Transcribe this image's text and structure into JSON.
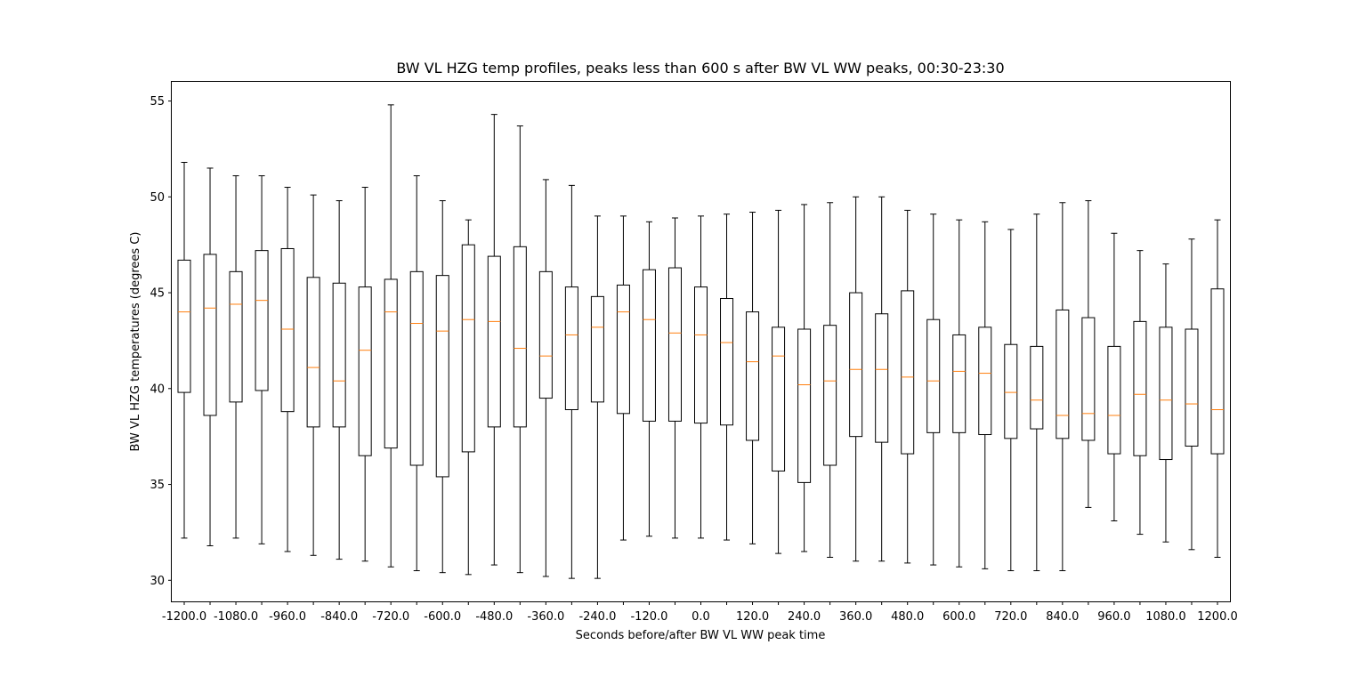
{
  "chart_data": {
    "type": "boxplot",
    "title": "BW VL HZG temp profiles, peaks less than 600 s after BW VL WW peaks, 00:30-23:30",
    "xlabel": "Seconds before/after BW VL WW peak time",
    "ylabel": "BW VL HZG temperatures (degrees C)",
    "ylim": [
      28.9,
      56.0
    ],
    "yticks": [
      30,
      35,
      40,
      45,
      50,
      55
    ],
    "xtick_labels": [
      "-1200.0",
      "-1080.0",
      "-960.0",
      "-840.0",
      "-720.0",
      "-600.0",
      "-480.0",
      "-360.0",
      "-240.0",
      "-120.0",
      "0.0",
      "120.0",
      "240.0",
      "360.0",
      "480.0",
      "600.0",
      "720.0",
      "840.0",
      "960.0",
      "1080.0",
      "1200.0"
    ],
    "grid": false,
    "median_color": "#ff7f0e",
    "box_color": "#000000",
    "boxes": [
      {
        "x": -1200,
        "whislo": 32.2,
        "q1": 39.8,
        "med": 44.0,
        "q3": 46.7,
        "whishi": 51.8
      },
      {
        "x": -1140,
        "whislo": 31.8,
        "q1": 38.6,
        "med": 44.2,
        "q3": 47.0,
        "whishi": 51.5
      },
      {
        "x": -1080,
        "whislo": 32.2,
        "q1": 39.3,
        "med": 44.4,
        "q3": 46.1,
        "whishi": 51.1
      },
      {
        "x": -1020,
        "whislo": 31.9,
        "q1": 39.9,
        "med": 44.6,
        "q3": 47.2,
        "whishi": 51.1
      },
      {
        "x": -960,
        "whislo": 31.5,
        "q1": 38.8,
        "med": 43.1,
        "q3": 47.3,
        "whishi": 50.5
      },
      {
        "x": -900,
        "whislo": 31.3,
        "q1": 38.0,
        "med": 41.1,
        "q3": 45.8,
        "whishi": 50.1
      },
      {
        "x": -840,
        "whislo": 31.1,
        "q1": 38.0,
        "med": 40.4,
        "q3": 45.5,
        "whishi": 49.8
      },
      {
        "x": -780,
        "whislo": 31.0,
        "q1": 36.5,
        "med": 42.0,
        "q3": 45.3,
        "whishi": 50.5
      },
      {
        "x": -720,
        "whislo": 30.7,
        "q1": 36.9,
        "med": 44.0,
        "q3": 45.7,
        "whishi": 54.8
      },
      {
        "x": -660,
        "whislo": 30.5,
        "q1": 36.0,
        "med": 43.4,
        "q3": 46.1,
        "whishi": 51.1
      },
      {
        "x": -600,
        "whislo": 30.4,
        "q1": 35.4,
        "med": 43.0,
        "q3": 45.9,
        "whishi": 49.8
      },
      {
        "x": -540,
        "whislo": 30.3,
        "q1": 36.7,
        "med": 43.6,
        "q3": 47.5,
        "whishi": 48.8
      },
      {
        "x": -480,
        "whislo": 30.8,
        "q1": 38.0,
        "med": 43.5,
        "q3": 46.9,
        "whishi": 54.3
      },
      {
        "x": -420,
        "whislo": 30.4,
        "q1": 38.0,
        "med": 42.1,
        "q3": 47.4,
        "whishi": 53.7
      },
      {
        "x": -360,
        "whislo": 30.2,
        "q1": 39.5,
        "med": 41.7,
        "q3": 46.1,
        "whishi": 50.9
      },
      {
        "x": -300,
        "whislo": 30.1,
        "q1": 38.9,
        "med": 42.8,
        "q3": 45.3,
        "whishi": 50.6
      },
      {
        "x": -240,
        "whislo": 30.1,
        "q1": 39.3,
        "med": 43.2,
        "q3": 44.8,
        "whishi": 49.0
      },
      {
        "x": -180,
        "whislo": 32.1,
        "q1": 38.7,
        "med": 44.0,
        "q3": 45.4,
        "whishi": 49.0
      },
      {
        "x": -120,
        "whislo": 32.3,
        "q1": 38.3,
        "med": 43.6,
        "q3": 46.2,
        "whishi": 48.7
      },
      {
        "x": -60,
        "whislo": 32.2,
        "q1": 38.3,
        "med": 42.9,
        "q3": 46.3,
        "whishi": 48.9
      },
      {
        "x": 0,
        "whislo": 32.2,
        "q1": 38.2,
        "med": 42.8,
        "q3": 45.3,
        "whishi": 49.0
      },
      {
        "x": 60,
        "whislo": 32.1,
        "q1": 38.1,
        "med": 42.4,
        "q3": 44.7,
        "whishi": 49.1
      },
      {
        "x": 120,
        "whislo": 31.9,
        "q1": 37.3,
        "med": 41.4,
        "q3": 44.0,
        "whishi": 49.2
      },
      {
        "x": 180,
        "whislo": 31.4,
        "q1": 35.7,
        "med": 41.7,
        "q3": 43.2,
        "whishi": 49.3
      },
      {
        "x": 240,
        "whislo": 31.5,
        "q1": 35.1,
        "med": 40.2,
        "q3": 43.1,
        "whishi": 49.6
      },
      {
        "x": 300,
        "whislo": 31.2,
        "q1": 36.0,
        "med": 40.4,
        "q3": 43.3,
        "whishi": 49.7
      },
      {
        "x": 360,
        "whislo": 31.0,
        "q1": 37.5,
        "med": 41.0,
        "q3": 45.0,
        "whishi": 50.0
      },
      {
        "x": 420,
        "whislo": 31.0,
        "q1": 37.2,
        "med": 41.0,
        "q3": 43.9,
        "whishi": 50.0
      },
      {
        "x": 480,
        "whislo": 30.9,
        "q1": 36.6,
        "med": 40.6,
        "q3": 45.1,
        "whishi": 49.3
      },
      {
        "x": 540,
        "whislo": 30.8,
        "q1": 37.7,
        "med": 40.4,
        "q3": 43.6,
        "whishi": 49.1
      },
      {
        "x": 600,
        "whislo": 30.7,
        "q1": 37.7,
        "med": 40.9,
        "q3": 42.8,
        "whishi": 48.8
      },
      {
        "x": 660,
        "whislo": 30.6,
        "q1": 37.6,
        "med": 40.8,
        "q3": 43.2,
        "whishi": 48.7
      },
      {
        "x": 720,
        "whislo": 30.5,
        "q1": 37.4,
        "med": 39.8,
        "q3": 42.3,
        "whishi": 48.3
      },
      {
        "x": 780,
        "whislo": 30.5,
        "q1": 37.9,
        "med": 39.4,
        "q3": 42.2,
        "whishi": 49.1
      },
      {
        "x": 840,
        "whislo": 30.5,
        "q1": 37.4,
        "med": 38.6,
        "q3": 44.1,
        "whishi": 49.7
      },
      {
        "x": 900,
        "whislo": 33.8,
        "q1": 37.3,
        "med": 38.7,
        "q3": 43.7,
        "whishi": 49.8
      },
      {
        "x": 960,
        "whislo": 33.1,
        "q1": 36.6,
        "med": 38.6,
        "q3": 42.2,
        "whishi": 48.1
      },
      {
        "x": 1020,
        "whislo": 32.4,
        "q1": 36.5,
        "med": 39.7,
        "q3": 43.5,
        "whishi": 47.2
      },
      {
        "x": 1080,
        "whislo": 32.0,
        "q1": 36.3,
        "med": 39.4,
        "q3": 43.2,
        "whishi": 46.5
      },
      {
        "x": 1140,
        "whislo": 31.6,
        "q1": 37.0,
        "med": 39.2,
        "q3": 43.1,
        "whishi": 47.8
      },
      {
        "x": 1200,
        "whislo": 31.2,
        "q1": 36.6,
        "med": 38.9,
        "q3": 45.2,
        "whishi": 48.8
      }
    ]
  }
}
